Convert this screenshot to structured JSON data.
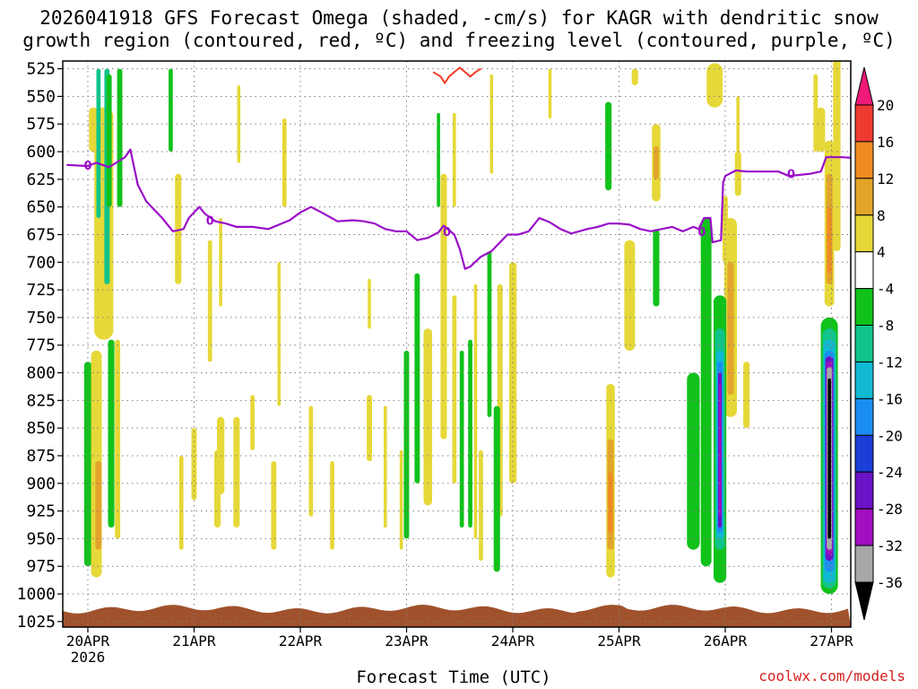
{
  "title": {
    "line1": "2026041918 GFS Forecast Omega (shaded, -cm/s) for KAGR with dendritic snow",
    "line2": "growth region (contoured, red, ºC) and freezing level (contoured, purple, ºC)"
  },
  "credit": "coolwx.com/models",
  "colors": {
    "freezing_line": "#9a0ec8",
    "dgz_line": "#f03c28",
    "terrain": "#a0522d",
    "grid": "#808080"
  },
  "chart_data": {
    "type": "heatmap",
    "title": "2026041918 GFS Forecast Omega (shaded, -cm/s) for KAGR with dendritic snow growth region (contoured, red, ºC) and freezing level (contoured, purple, ºC)",
    "xlabel": "Forecast Time (UTC)",
    "ylabel": "",
    "x_range_days": [
      "20APR 00Z",
      "27APR 06Z"
    ],
    "x_ticks": [
      {
        "day": 0,
        "label": "20APR",
        "sub": "2026"
      },
      {
        "day": 1,
        "label": "21APR",
        "sub": ""
      },
      {
        "day": 2,
        "label": "22APR",
        "sub": ""
      },
      {
        "day": 3,
        "label": "23APR",
        "sub": ""
      },
      {
        "day": 4,
        "label": "24APR",
        "sub": ""
      },
      {
        "day": 5,
        "label": "25APR",
        "sub": ""
      },
      {
        "day": 6,
        "label": "26APR",
        "sub": ""
      },
      {
        "day": 7,
        "label": "27APR",
        "sub": ""
      }
    ],
    "y_ticks": [
      525,
      550,
      575,
      600,
      625,
      650,
      675,
      700,
      725,
      750,
      775,
      800,
      825,
      850,
      875,
      900,
      925,
      950,
      975,
      1000,
      1025
    ],
    "colorbar": {
      "labels": [
        20,
        16,
        12,
        8,
        4,
        -4,
        -8,
        -12,
        -16,
        -20,
        -24,
        -28,
        -32,
        -36
      ],
      "bins": [
        {
          "color": "#f01a7a"
        },
        {
          "color": "#ef3a32"
        },
        {
          "color": "#f08a22"
        },
        {
          "color": "#e2a52a"
        },
        {
          "color": "#e6d838"
        },
        {
          "color": "#ffffff"
        },
        {
          "color": "#10c21a"
        },
        {
          "color": "#10c48c"
        },
        {
          "color": "#10b8d2"
        },
        {
          "color": "#1a8ef0"
        },
        {
          "color": "#1a3ed6"
        },
        {
          "color": "#6a12c6"
        },
        {
          "color": "#a010c0"
        },
        {
          "color": "#a8a8a8"
        },
        {
          "color": "#000000"
        }
      ]
    },
    "freezing_level": {
      "label": "0",
      "series": [
        [
          -0.2,
          612
        ],
        [
          0.0,
          613
        ],
        [
          0.08,
          610
        ],
        [
          0.2,
          614
        ],
        [
          0.35,
          605
        ],
        [
          0.4,
          598
        ],
        [
          0.47,
          630
        ],
        [
          0.55,
          645
        ],
        [
          0.7,
          660
        ],
        [
          0.8,
          672
        ],
        [
          0.9,
          670
        ],
        [
          0.95,
          660
        ],
        [
          1.0,
          655
        ],
        [
          1.05,
          650
        ],
        [
          1.1,
          656
        ],
        [
          1.2,
          663
        ],
        [
          1.3,
          665
        ],
        [
          1.4,
          668
        ],
        [
          1.55,
          668
        ],
        [
          1.7,
          670
        ],
        [
          1.8,
          666
        ],
        [
          1.9,
          662
        ],
        [
          2.0,
          655
        ],
        [
          2.1,
          650
        ],
        [
          2.2,
          655
        ],
        [
          2.35,
          663
        ],
        [
          2.5,
          662
        ],
        [
          2.6,
          663
        ],
        [
          2.7,
          665
        ],
        [
          2.8,
          670
        ],
        [
          2.9,
          672
        ],
        [
          3.0,
          672
        ],
        [
          3.1,
          680
        ],
        [
          3.2,
          678
        ],
        [
          3.3,
          673
        ],
        [
          3.35,
          667
        ],
        [
          3.45,
          675
        ],
        [
          3.5,
          688
        ],
        [
          3.55,
          706
        ],
        [
          3.6,
          704
        ],
        [
          3.7,
          695
        ],
        [
          3.8,
          690
        ],
        [
          3.85,
          685
        ],
        [
          3.95,
          675
        ],
        [
          4.05,
          675
        ],
        [
          4.15,
          672
        ],
        [
          4.25,
          660
        ],
        [
          4.35,
          664
        ],
        [
          4.45,
          670
        ],
        [
          4.55,
          674
        ],
        [
          4.7,
          670
        ],
        [
          4.8,
          668
        ],
        [
          4.9,
          665
        ],
        [
          5.0,
          665
        ],
        [
          5.1,
          666
        ],
        [
          5.2,
          670
        ],
        [
          5.3,
          672
        ],
        [
          5.4,
          670
        ],
        [
          5.5,
          668
        ],
        [
          5.6,
          672
        ],
        [
          5.7,
          668
        ],
        [
          5.75,
          670
        ],
        [
          5.8,
          660
        ],
        [
          5.86,
          660
        ],
        [
          5.88,
          682
        ],
        [
          5.96,
          680
        ],
        [
          5.98,
          628
        ],
        [
          6.0,
          622
        ],
        [
          6.1,
          617
        ],
        [
          6.2,
          618
        ],
        [
          6.3,
          618
        ],
        [
          6.4,
          618
        ],
        [
          6.5,
          618
        ],
        [
          6.6,
          622
        ],
        [
          6.8,
          620
        ],
        [
          6.9,
          618
        ],
        [
          6.95,
          605
        ],
        [
          7.1,
          605
        ],
        [
          7.25,
          606
        ]
      ]
    },
    "dgz": {
      "series": [
        [
          3.25,
          528
        ],
        [
          3.32,
          532
        ],
        [
          3.36,
          538
        ],
        [
          3.4,
          532
        ],
        [
          3.45,
          528
        ],
        [
          3.5,
          524
        ],
        [
          3.55,
          528
        ],
        [
          3.6,
          532
        ],
        [
          3.65,
          528
        ],
        [
          3.7,
          525
        ]
      ]
    },
    "omega_cells": [
      {
        "t": 0.15,
        "p0": 560,
        "p1": 770,
        "w": 0.18,
        "c": 4
      },
      {
        "t": 0.05,
        "p0": 560,
        "p1": 600,
        "w": 0.08,
        "c": 4
      },
      {
        "t": 0.12,
        "p0": 575,
        "p1": 700,
        "w": 0.08,
        "c": 4
      },
      {
        "t": 0.18,
        "p0": 525,
        "p1": 720,
        "w": 0.05,
        "c": 7
      },
      {
        "t": 0.2,
        "p0": 530,
        "p1": 650,
        "w": 0.05,
        "c": 6
      },
      {
        "t": 0.3,
        "p0": 525,
        "p1": 650,
        "w": 0.05,
        "c": 6
      },
      {
        "t": 0.1,
        "p0": 525,
        "p1": 660,
        "w": 0.04,
        "c": 7
      },
      {
        "t": 0.0,
        "p0": 790,
        "p1": 975,
        "w": 0.07,
        "c": 6
      },
      {
        "t": 0.08,
        "p0": 780,
        "p1": 985,
        "w": 0.1,
        "c": 4
      },
      {
        "t": 0.1,
        "p0": 880,
        "p1": 960,
        "w": 0.06,
        "c": 3
      },
      {
        "t": 0.22,
        "p0": 770,
        "p1": 940,
        "w": 0.06,
        "c": 6
      },
      {
        "t": 0.28,
        "p0": 770,
        "p1": 950,
        "w": 0.05,
        "c": 4
      },
      {
        "t": 0.85,
        "p0": 620,
        "p1": 720,
        "w": 0.06,
        "c": 4
      },
      {
        "t": 0.88,
        "p0": 875,
        "p1": 960,
        "w": 0.04,
        "c": 4
      },
      {
        "t": 1.0,
        "p0": 850,
        "p1": 915,
        "w": 0.05,
        "c": 4
      },
      {
        "t": 1.15,
        "p0": 680,
        "p1": 790,
        "w": 0.04,
        "c": 4
      },
      {
        "t": 0.78,
        "p0": 525,
        "p1": 600,
        "w": 0.04,
        "c": 6
      },
      {
        "t": 1.25,
        "p0": 840,
        "p1": 910,
        "w": 0.07,
        "c": 4
      },
      {
        "t": 1.22,
        "p0": 870,
        "p1": 940,
        "w": 0.06,
        "c": 4
      },
      {
        "t": 1.4,
        "p0": 840,
        "p1": 940,
        "w": 0.06,
        "c": 4
      },
      {
        "t": 1.42,
        "p0": 540,
        "p1": 610,
        "w": 0.03,
        "c": 4
      },
      {
        "t": 1.25,
        "p0": 660,
        "p1": 740,
        "w": 0.03,
        "c": 4
      },
      {
        "t": 1.8,
        "p0": 700,
        "p1": 830,
        "w": 0.03,
        "c": 4
      },
      {
        "t": 1.75,
        "p0": 880,
        "p1": 960,
        "w": 0.05,
        "c": 4
      },
      {
        "t": 1.55,
        "p0": 820,
        "p1": 870,
        "w": 0.04,
        "c": 4
      },
      {
        "t": 1.85,
        "p0": 570,
        "p1": 650,
        "w": 0.04,
        "c": 4
      },
      {
        "t": 2.1,
        "p0": 830,
        "p1": 930,
        "w": 0.04,
        "c": 4
      },
      {
        "t": 2.3,
        "p0": 880,
        "p1": 960,
        "w": 0.04,
        "c": 4
      },
      {
        "t": 2.65,
        "p0": 820,
        "p1": 880,
        "w": 0.05,
        "c": 4
      },
      {
        "t": 2.8,
        "p0": 830,
        "p1": 940,
        "w": 0.03,
        "c": 4
      },
      {
        "t": 2.65,
        "p0": 715,
        "p1": 760,
        "w": 0.03,
        "c": 4
      },
      {
        "t": 2.95,
        "p0": 870,
        "p1": 960,
        "w": 0.03,
        "c": 4
      },
      {
        "t": 3.0,
        "p0": 780,
        "p1": 950,
        "w": 0.05,
        "c": 6
      },
      {
        "t": 3.1,
        "p0": 710,
        "p1": 900,
        "w": 0.05,
        "c": 6
      },
      {
        "t": 3.2,
        "p0": 760,
        "p1": 920,
        "w": 0.08,
        "c": 4
      },
      {
        "t": 3.35,
        "p0": 620,
        "p1": 860,
        "w": 0.06,
        "c": 4
      },
      {
        "t": 3.45,
        "p0": 730,
        "p1": 900,
        "w": 0.04,
        "c": 4
      },
      {
        "t": 3.52,
        "p0": 780,
        "p1": 940,
        "w": 0.04,
        "c": 6
      },
      {
        "t": 3.6,
        "p0": 770,
        "p1": 940,
        "w": 0.04,
        "c": 6
      },
      {
        "t": 3.65,
        "p0": 720,
        "p1": 950,
        "w": 0.03,
        "c": 4
      },
      {
        "t": 3.7,
        "p0": 870,
        "p1": 970,
        "w": 0.04,
        "c": 4
      },
      {
        "t": 3.78,
        "p0": 690,
        "p1": 840,
        "w": 0.04,
        "c": 6
      },
      {
        "t": 3.88,
        "p0": 720,
        "p1": 930,
        "w": 0.05,
        "c": 4
      },
      {
        "t": 4.0,
        "p0": 700,
        "p1": 900,
        "w": 0.07,
        "c": 4
      },
      {
        "t": 3.85,
        "p0": 830,
        "p1": 980,
        "w": 0.06,
        "c": 6
      },
      {
        "t": 3.8,
        "p0": 530,
        "p1": 620,
        "w": 0.03,
        "c": 4
      },
      {
        "t": 3.45,
        "p0": 565,
        "p1": 650,
        "w": 0.03,
        "c": 4
      },
      {
        "t": 3.3,
        "p0": 565,
        "p1": 650,
        "w": 0.03,
        "c": 6
      },
      {
        "t": 4.35,
        "p0": 525,
        "p1": 570,
        "w": 0.03,
        "c": 4
      },
      {
        "t": 4.9,
        "p0": 555,
        "p1": 635,
        "w": 0.06,
        "c": 6
      },
      {
        "t": 5.1,
        "p0": 680,
        "p1": 780,
        "w": 0.1,
        "c": 4
      },
      {
        "t": 5.15,
        "p0": 525,
        "p1": 540,
        "w": 0.06,
        "c": 4
      },
      {
        "t": 5.35,
        "p0": 575,
        "p1": 645,
        "w": 0.08,
        "c": 4
      },
      {
        "t": 5.35,
        "p0": 595,
        "p1": 625,
        "w": 0.05,
        "c": 3
      },
      {
        "t": 5.35,
        "p0": 670,
        "p1": 740,
        "w": 0.06,
        "c": 6
      },
      {
        "t": 4.92,
        "p0": 810,
        "p1": 985,
        "w": 0.08,
        "c": 4
      },
      {
        "t": 4.92,
        "p0": 860,
        "p1": 960,
        "w": 0.06,
        "c": 3
      },
      {
        "t": 4.92,
        "p0": 890,
        "p1": 945,
        "w": 0.04,
        "c": 2
      },
      {
        "t": 5.9,
        "p0": 520,
        "p1": 560,
        "w": 0.15,
        "c": 4
      },
      {
        "t": 6.12,
        "p0": 600,
        "p1": 640,
        "w": 0.06,
        "c": 4
      },
      {
        "t": 6.12,
        "p0": 550,
        "p1": 630,
        "w": 0.03,
        "c": 4
      },
      {
        "t": 6.0,
        "p0": 640,
        "p1": 700,
        "w": 0.05,
        "c": 4
      },
      {
        "t": 6.05,
        "p0": 660,
        "p1": 840,
        "w": 0.12,
        "c": 4
      },
      {
        "t": 6.05,
        "p0": 700,
        "p1": 820,
        "w": 0.06,
        "c": 3
      },
      {
        "t": 6.2,
        "p0": 790,
        "p1": 850,
        "w": 0.06,
        "c": 4
      },
      {
        "t": 5.82,
        "p0": 660,
        "p1": 975,
        "w": 0.1,
        "c": 6
      },
      {
        "t": 5.95,
        "p0": 730,
        "p1": 990,
        "w": 0.12,
        "c": 6
      },
      {
        "t": 5.95,
        "p0": 760,
        "p1": 960,
        "w": 0.09,
        "c": 7
      },
      {
        "t": 5.95,
        "p0": 780,
        "p1": 950,
        "w": 0.07,
        "c": 8
      },
      {
        "t": 5.95,
        "p0": 790,
        "p1": 945,
        "w": 0.05,
        "c": 9
      },
      {
        "t": 5.95,
        "p0": 800,
        "p1": 940,
        "w": 0.035,
        "c": 11
      },
      {
        "t": 5.95,
        "p0": 810,
        "p1": 930,
        "w": 0.02,
        "c": 12
      },
      {
        "t": 5.7,
        "p0": 800,
        "p1": 960,
        "w": 0.12,
        "c": 6
      },
      {
        "t": 6.9,
        "p0": 560,
        "p1": 600,
        "w": 0.08,
        "c": 4
      },
      {
        "t": 7.05,
        "p0": 510,
        "p1": 690,
        "w": 0.07,
        "c": 4
      },
      {
        "t": 6.85,
        "p0": 530,
        "p1": 600,
        "w": 0.04,
        "c": 4
      },
      {
        "t": 6.98,
        "p0": 590,
        "p1": 740,
        "w": 0.09,
        "c": 4
      },
      {
        "t": 6.98,
        "p0": 620,
        "p1": 720,
        "w": 0.06,
        "c": 3
      },
      {
        "t": 6.98,
        "p0": 650,
        "p1": 710,
        "w": 0.04,
        "c": 2
      },
      {
        "t": 6.98,
        "p0": 750,
        "p1": 1000,
        "w": 0.16,
        "c": 6
      },
      {
        "t": 6.98,
        "p0": 760,
        "p1": 995,
        "w": 0.13,
        "c": 7
      },
      {
        "t": 6.98,
        "p0": 770,
        "p1": 990,
        "w": 0.11,
        "c": 8
      },
      {
        "t": 6.98,
        "p0": 780,
        "p1": 980,
        "w": 0.09,
        "c": 9
      },
      {
        "t": 6.98,
        "p0": 785,
        "p1": 970,
        "w": 0.075,
        "c": 11
      },
      {
        "t": 6.98,
        "p0": 790,
        "p1": 965,
        "w": 0.06,
        "c": 12
      },
      {
        "t": 6.98,
        "p0": 795,
        "p1": 960,
        "w": 0.05,
        "c": 13
      },
      {
        "t": 6.98,
        "p0": 805,
        "p1": 950,
        "w": 0.03,
        "c": 14
      }
    ]
  }
}
